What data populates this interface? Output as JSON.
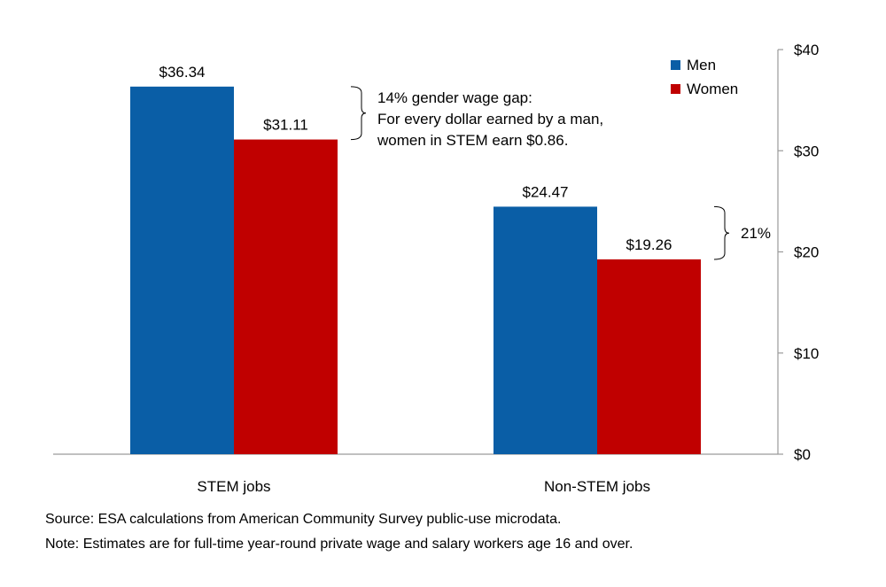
{
  "chart_data": {
    "type": "bar",
    "title": "",
    "xlabel": "",
    "ylabel": "",
    "categories": [
      "STEM jobs",
      "Non-STEM jobs"
    ],
    "series": [
      {
        "name": "Men",
        "color": "#0a5ea6",
        "values": [
          36.34,
          24.47
        ],
        "labels": [
          "$36.34",
          "$24.47"
        ]
      },
      {
        "name": "Women",
        "color": "#c00000",
        "values": [
          31.11,
          19.26
        ],
        "labels": [
          "$31.11",
          "$19.26"
        ]
      }
    ],
    "ylim": [
      0,
      40
    ],
    "yticks": [
      0,
      10,
      20,
      30,
      40
    ],
    "ytick_labels": [
      "$0",
      "$10",
      "$20",
      "$30",
      "$40"
    ],
    "y_axis_side": "right",
    "legend_position": "top-right",
    "grid": false,
    "annotations": [
      {
        "category": "STEM jobs",
        "lines": [
          "14% gender wage gap:",
          "For every dollar earned by a man,",
          "women in STEM earn $0.86."
        ]
      },
      {
        "category": "Non-STEM jobs",
        "lines": [
          "21%"
        ]
      }
    ]
  },
  "footnotes": {
    "source": "Source:  ESA calculations from American Community Survey public-use microdata.",
    "note": "Note: Estimates are for full-time year-round private wage and salary workers age 16 and over."
  }
}
